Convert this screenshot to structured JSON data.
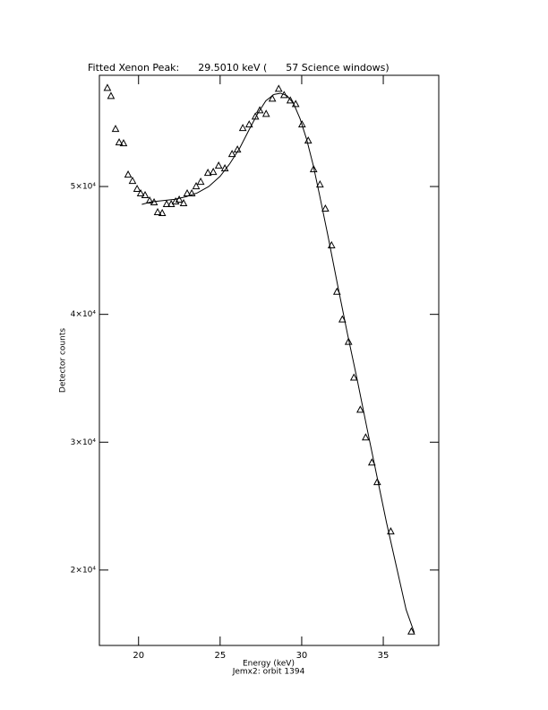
{
  "chart_data": {
    "type": "line",
    "title": "Fitted Xenon Peak:      29.5010 keV (      57 Science windows)",
    "x_label": "Energy (keV)",
    "subtitle": "Jemx2: orbit 1394",
    "y_label": "Detector counts",
    "xlim": [
      17.6,
      38.4
    ],
    "ylim": [
      14100,
      58700
    ],
    "xticks": [
      20,
      25,
      30,
      35
    ],
    "yticks": [
      {
        "value": 20000,
        "label": "2×10⁴"
      },
      {
        "value": 30000,
        "label": "3×10⁴"
      },
      {
        "value": 40000,
        "label": "4×10⁴"
      },
      {
        "value": 50000,
        "label": "5×10⁴"
      }
    ],
    "series": [
      {
        "style": "markers",
        "marker": "triangle",
        "color": "#000000",
        "x": [
          18.09,
          18.31,
          18.59,
          18.81,
          19.08,
          19.36,
          19.63,
          19.91,
          20.13,
          20.4,
          20.68,
          20.95,
          21.17,
          21.45,
          21.72,
          22.0,
          22.27,
          22.49,
          22.76,
          22.98,
          23.26,
          23.53,
          23.81,
          24.25,
          24.58,
          24.91,
          25.29,
          25.73,
          26.06,
          26.39,
          26.78,
          27.16,
          27.43,
          27.82,
          28.2,
          28.59,
          28.92,
          29.3,
          29.63,
          30.02,
          30.4,
          30.73,
          31.12,
          31.45,
          31.83,
          32.16,
          32.49,
          32.87,
          33.2,
          33.59,
          33.92,
          34.3,
          34.63,
          35.46,
          36.72
        ],
        "values": [
          57690,
          57060,
          54480,
          53430,
          53360,
          50910,
          50420,
          49790,
          49440,
          49300,
          48880,
          48740,
          47970,
          47900,
          48600,
          48600,
          48810,
          48950,
          48670,
          49440,
          49440,
          50000,
          50350,
          51050,
          51120,
          51610,
          51400,
          52520,
          52870,
          54550,
          54830,
          55450,
          55940,
          55660,
          56850,
          57620,
          57130,
          56710,
          56430,
          54830,
          53570,
          51330,
          50140,
          48250,
          45380,
          41750,
          39580,
          37830,
          35030,
          32520,
          30350,
          28390,
          26850,
          23000,
          15170
        ]
      },
      {
        "style": "line",
        "color": "#000000",
        "x": [
          20.2,
          20.8,
          21.5,
          22.2,
          22.9,
          23.6,
          24.3,
          25.0,
          25.6,
          26.2,
          26.8,
          27.3,
          27.8,
          28.3,
          28.7,
          29.1,
          29.5,
          29.9,
          30.3,
          30.7,
          31.1,
          31.6,
          32.2,
          32.8,
          33.4,
          34.0,
          34.6,
          35.2,
          35.8,
          36.4,
          36.9
        ],
        "values": [
          48600,
          48800,
          48900,
          49000,
          49200,
          49500,
          50000,
          50800,
          51800,
          53000,
          54500,
          55700,
          56700,
          57200,
          57300,
          57100,
          56500,
          55300,
          53700,
          51700,
          49300,
          46200,
          42300,
          38500,
          34900,
          31100,
          27400,
          23700,
          20300,
          16900,
          15100
        ]
      }
    ]
  }
}
